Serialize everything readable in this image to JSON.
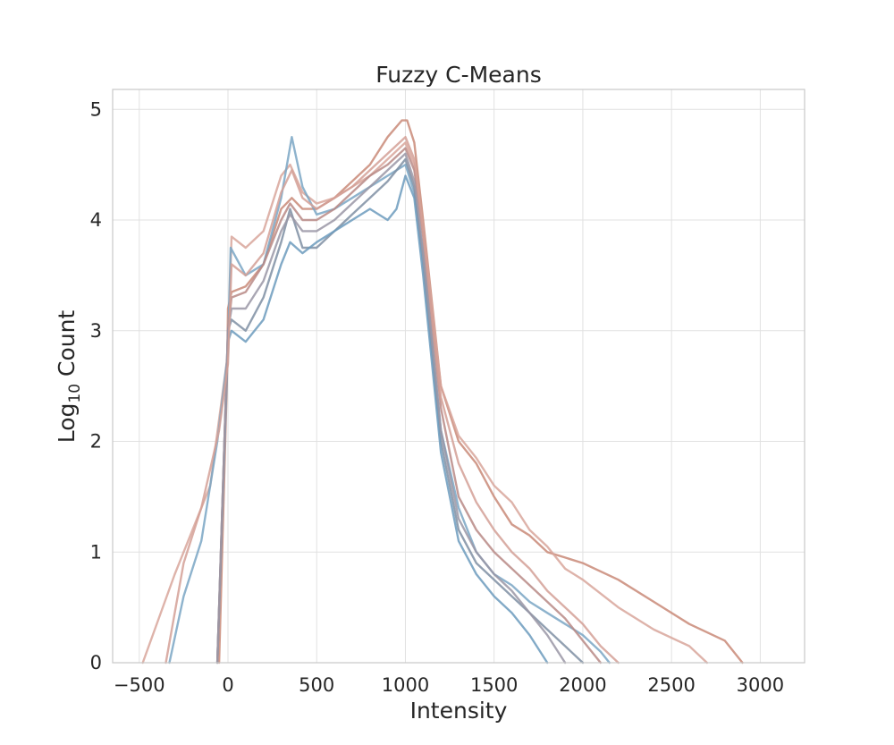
{
  "chart_data": {
    "type": "line",
    "title": "Fuzzy C-Means",
    "xlabel": "Intensity",
    "ylabel_main": "Log",
    "ylabel_sub": "10",
    "ylabel_tail": " Count",
    "xlim": [
      -650,
      3250
    ],
    "ylim": [
      0,
      5.18
    ],
    "xticks": [
      -500,
      0,
      500,
      1000,
      1500,
      2000,
      2500,
      3000
    ],
    "xtick_labels": [
      "−500",
      "0",
      "500",
      "1000",
      "1500",
      "2000",
      "2500",
      "3000"
    ],
    "yticks": [
      0,
      1,
      2,
      3,
      4,
      5
    ],
    "ytick_labels": [
      "0",
      "1",
      "2",
      "3",
      "4",
      "5"
    ],
    "grid": true,
    "legend": "none",
    "series": [
      {
        "color": "#c98a78",
        "x": [
          -50,
          -5,
          0,
          20,
          100,
          200,
          300,
          360,
          420,
          500,
          600,
          700,
          800,
          900,
          980,
          1010,
          1050,
          1100,
          1200,
          1300,
          1400,
          1500,
          1600,
          1700,
          1800,
          1900,
          2000,
          2200,
          2400,
          2600,
          2800,
          2900
        ],
        "y": [
          0,
          2.6,
          3.2,
          3.35,
          3.4,
          3.6,
          4.1,
          4.2,
          4.1,
          4.1,
          4.2,
          4.35,
          4.5,
          4.75,
          4.9,
          4.9,
          4.7,
          4.0,
          2.5,
          2.0,
          1.8,
          1.5,
          1.25,
          1.15,
          1.0,
          0.95,
          0.9,
          0.75,
          0.55,
          0.35,
          0.2,
          0
        ]
      },
      {
        "color": "#d8a69b",
        "x": [
          -480,
          -300,
          -100,
          0,
          20,
          100,
          200,
          300,
          350,
          420,
          500,
          600,
          700,
          800,
          900,
          1000,
          1050,
          1100,
          1200,
          1300,
          1400,
          1500,
          1600,
          1700,
          1800,
          1900,
          2000,
          2200,
          2400,
          2600,
          2700
        ],
        "y": [
          0,
          0.8,
          1.6,
          2.8,
          3.85,
          3.75,
          3.9,
          4.4,
          4.5,
          4.25,
          4.15,
          4.2,
          4.3,
          4.4,
          4.55,
          4.7,
          4.5,
          3.9,
          2.5,
          2.05,
          1.85,
          1.6,
          1.45,
          1.2,
          1.05,
          0.85,
          0.75,
          0.5,
          0.3,
          0.15,
          0
        ]
      },
      {
        "color": "#7aa6c4",
        "x": [
          -330,
          -250,
          -150,
          -60,
          0,
          15,
          100,
          200,
          300,
          360,
          420,
          500,
          600,
          700,
          800,
          900,
          1000,
          1050,
          1100,
          1200,
          1300,
          1400,
          1500,
          1600,
          1700,
          1800,
          1900,
          2000,
          2100,
          2150
        ],
        "y": [
          0,
          0.6,
          1.1,
          2.0,
          2.8,
          3.75,
          3.5,
          3.6,
          4.2,
          4.75,
          4.3,
          4.05,
          4.1,
          4.2,
          4.3,
          4.4,
          4.5,
          4.25,
          3.7,
          2.1,
          1.4,
          1.0,
          0.8,
          0.7,
          0.55,
          0.45,
          0.35,
          0.25,
          0.1,
          0
        ]
      },
      {
        "color": "#7f8fa3",
        "x": [
          -60,
          -10,
          0,
          20,
          100,
          200,
          300,
          350,
          420,
          500,
          600,
          700,
          800,
          900,
          1000,
          1050,
          1100,
          1200,
          1300,
          1400,
          1500,
          1600,
          1700,
          1800,
          1900,
          2000
        ],
        "y": [
          0,
          2.5,
          3.0,
          3.1,
          3.0,
          3.3,
          3.8,
          4.1,
          3.75,
          3.75,
          3.9,
          4.05,
          4.2,
          4.35,
          4.55,
          4.3,
          3.6,
          2.0,
          1.2,
          0.9,
          0.75,
          0.6,
          0.45,
          0.3,
          0.15,
          0
        ]
      },
      {
        "color": "#6c9bbd",
        "x": [
          -60,
          -10,
          0,
          20,
          100,
          200,
          300,
          350,
          420,
          500,
          600,
          700,
          800,
          900,
          950,
          1000,
          1050,
          1100,
          1200,
          1300,
          1400,
          1500,
          1600,
          1700,
          1800
        ],
        "y": [
          0,
          2.4,
          2.9,
          3.0,
          2.9,
          3.1,
          3.6,
          3.8,
          3.7,
          3.8,
          3.9,
          4.0,
          4.1,
          4.0,
          4.1,
          4.4,
          4.2,
          3.5,
          1.9,
          1.1,
          0.8,
          0.6,
          0.45,
          0.25,
          0
        ]
      },
      {
        "color": "#b98a86",
        "x": [
          -60,
          -10,
          0,
          20,
          100,
          200,
          300,
          350,
          420,
          500,
          600,
          700,
          800,
          900,
          1000,
          1050,
          1100,
          1200,
          1300,
          1400,
          1500,
          1600,
          1700,
          1800,
          1900,
          2000,
          2100
        ],
        "y": [
          0,
          2.5,
          3.0,
          3.3,
          3.35,
          3.6,
          4.0,
          4.15,
          4.0,
          4.0,
          4.1,
          4.25,
          4.4,
          4.5,
          4.65,
          4.45,
          3.85,
          2.3,
          1.5,
          1.2,
          1.0,
          0.85,
          0.7,
          0.55,
          0.4,
          0.2,
          0
        ]
      },
      {
        "color": "#9a96a6",
        "x": [
          -60,
          -10,
          0,
          20,
          100,
          200,
          300,
          350,
          420,
          500,
          600,
          700,
          800,
          900,
          1000,
          1050,
          1100,
          1200,
          1300,
          1400,
          1500,
          1600,
          1700,
          1800,
          1900
        ],
        "y": [
          0,
          2.5,
          3.0,
          3.2,
          3.2,
          3.45,
          3.9,
          4.05,
          3.9,
          3.9,
          4.0,
          4.15,
          4.3,
          4.45,
          4.6,
          4.35,
          3.7,
          2.1,
          1.3,
          1.0,
          0.8,
          0.65,
          0.45,
          0.25,
          0
        ]
      },
      {
        "color": "#d4a096",
        "x": [
          -350,
          -250,
          -150,
          -50,
          0,
          20,
          100,
          200,
          300,
          360,
          420,
          500,
          600,
          700,
          800,
          900,
          1000,
          1050,
          1100,
          1200,
          1300,
          1400,
          1500,
          1600,
          1700,
          1800,
          1900,
          2000,
          2100,
          2200
        ],
        "y": [
          0,
          0.9,
          1.4,
          2.1,
          2.7,
          3.6,
          3.5,
          3.7,
          4.25,
          4.45,
          4.2,
          4.1,
          4.2,
          4.3,
          4.45,
          4.6,
          4.75,
          4.55,
          3.9,
          2.4,
          1.8,
          1.45,
          1.2,
          1.0,
          0.85,
          0.65,
          0.5,
          0.35,
          0.15,
          0
        ]
      }
    ]
  }
}
